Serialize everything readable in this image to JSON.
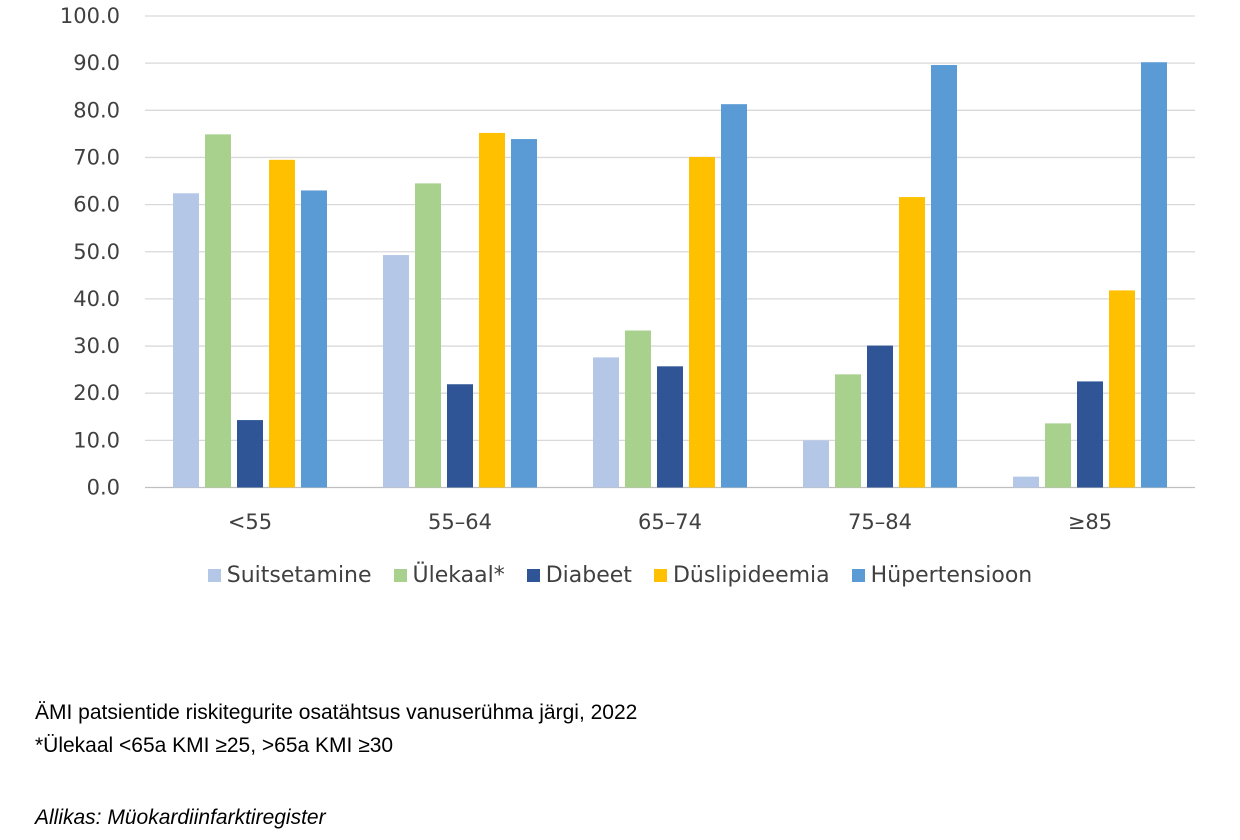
{
  "chart_data": {
    "type": "bar",
    "categories": [
      "<55",
      "55–64",
      "65–74",
      "75–84",
      "≥85"
    ],
    "series": [
      {
        "name": "Suitsetamine",
        "color": "#b4c7e7",
        "values": [
          62.4,
          49.3,
          27.6,
          10.0,
          2.3
        ]
      },
      {
        "name": "Ülekaal*",
        "color": "#a9d18e",
        "values": [
          74.9,
          64.5,
          33.3,
          24.0,
          13.6
        ]
      },
      {
        "name": "Diabeet",
        "color": "#2f5597",
        "values": [
          14.3,
          21.9,
          25.7,
          30.1,
          22.5
        ]
      },
      {
        "name": "Düslipideemia",
        "color": "#ffc000",
        "values": [
          69.5,
          75.2,
          70.1,
          61.6,
          41.8
        ]
      },
      {
        "name": "Hüpertensioon",
        "color": "#5b9bd5",
        "values": [
          63.0,
          73.9,
          81.3,
          89.6,
          90.2
        ]
      }
    ],
    "yticks": [
      "0.0",
      "10.0",
      "20.0",
      "30.0",
      "40.0",
      "50.0",
      "60.0",
      "70.0",
      "80.0",
      "90.0",
      "100.0"
    ],
    "ylim": [
      0,
      100
    ],
    "grid": true,
    "legend": "bottom",
    "xlabel": "",
    "ylabel": ""
  },
  "caption": {
    "title": "ÄMI patsientide riskitegurite osatähtsus vanuserühma järgi, 2022",
    "note": "*Ülekaal <65a KMI ≥25, >65a KMI ≥30",
    "source": "Allikas: Müokardiinfarktiregister"
  }
}
